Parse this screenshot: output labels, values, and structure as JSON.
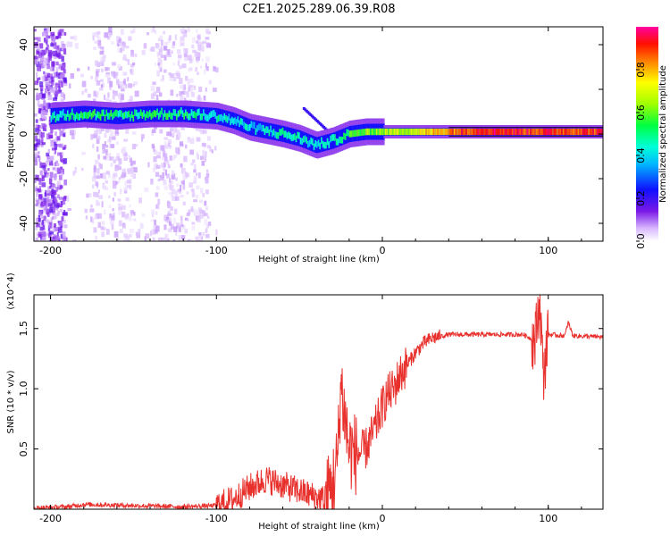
{
  "title": "C2E1.2025.289.06.39.R08",
  "chart_data": [
    {
      "type": "heatmap",
      "xlabel": "Height of straight line (km)",
      "ylabel": "Frequency (Hz)",
      "xlim": [
        -210,
        133
      ],
      "ylim": [
        -48,
        48
      ],
      "xticks": [
        -200,
        -100,
        0,
        100
      ],
      "yticks": [
        -40,
        -20,
        0,
        20,
        40
      ],
      "colorbar": {
        "label": "Normalized spectral amplitude",
        "range": [
          0,
          1
        ],
        "ticks": [
          "0.0",
          "0.2",
          "0.4",
          "0.6",
          "0.8"
        ],
        "colormap": "rainbow (white-violet at 0 to red at 1)"
      },
      "ridge": [
        {
          "x": -200,
          "f": 8,
          "a": 0.45
        },
        {
          "x": -180,
          "f": 9,
          "a": 0.5
        },
        {
          "x": -160,
          "f": 8,
          "a": 0.5
        },
        {
          "x": -140,
          "f": 9,
          "a": 0.5
        },
        {
          "x": -120,
          "f": 9,
          "a": 0.5
        },
        {
          "x": -100,
          "f": 8,
          "a": 0.45
        },
        {
          "x": -90,
          "f": 6,
          "a": 0.4
        },
        {
          "x": -80,
          "f": 3,
          "a": 0.4
        },
        {
          "x": -60,
          "f": 0,
          "a": 0.45
        },
        {
          "x": -50,
          "f": -2,
          "a": 0.45
        },
        {
          "x": -40,
          "f": -5,
          "a": 0.4
        },
        {
          "x": -30,
          "f": -3,
          "a": 0.45
        },
        {
          "x": -20,
          "f": 0,
          "a": 0.55
        },
        {
          "x": -10,
          "f": 1,
          "a": 0.6
        },
        {
          "x": 0,
          "f": 1,
          "a": 0.65
        },
        {
          "x": 20,
          "f": 1,
          "a": 0.7
        },
        {
          "x": 40,
          "f": 1,
          "a": 0.85
        },
        {
          "x": 60,
          "f": 1,
          "a": 0.95
        },
        {
          "x": 90,
          "f": 1,
          "a": 0.9
        },
        {
          "x": 110,
          "f": 1,
          "a": 0.9
        },
        {
          "x": 133,
          "f": 1,
          "a": 0.9
        }
      ]
    },
    {
      "type": "line",
      "xlabel": "Height of straight line (km)",
      "ylabel": "SNR (10 * v/v)",
      "y_scale_label": "(x10^4)",
      "xlim": [
        -210,
        133
      ],
      "ylim": [
        0,
        1.78
      ],
      "xticks": [
        -200,
        -100,
        0,
        100
      ],
      "yticks": [
        0.5,
        1.0,
        1.5
      ],
      "ytick_labels": [
        "0.5",
        "1.0",
        "1.5"
      ],
      "series": [
        {
          "name": "SNR",
          "color": "#e8302c",
          "points": [
            [
              -210,
              0.01
            ],
            [
              -190,
              0.02
            ],
            [
              -180,
              0.04
            ],
            [
              -150,
              0.03
            ],
            [
              -120,
              0.02
            ],
            [
              -100,
              0.03
            ],
            [
              -90,
              0.08
            ],
            [
              -80,
              0.18
            ],
            [
              -70,
              0.25
            ],
            [
              -60,
              0.2
            ],
            [
              -50,
              0.15
            ],
            [
              -40,
              0.1
            ],
            [
              -34,
              0.08
            ],
            [
              -30,
              0.2
            ],
            [
              -27,
              0.4
            ],
            [
              -25,
              1.05
            ],
            [
              -22,
              0.7
            ],
            [
              -20,
              0.5
            ],
            [
              -15,
              0.45
            ],
            [
              -10,
              0.5
            ],
            [
              -5,
              0.65
            ],
            [
              0,
              0.85
            ],
            [
              3,
              0.95
            ],
            [
              7,
              1.0
            ],
            [
              10,
              1.1
            ],
            [
              15,
              1.2
            ],
            [
              20,
              1.3
            ],
            [
              25,
              1.38
            ],
            [
              30,
              1.42
            ],
            [
              40,
              1.45
            ],
            [
              60,
              1.45
            ],
            [
              85,
              1.45
            ],
            [
              92,
              1.4
            ],
            [
              95,
              1.75
            ],
            [
              97,
              1.1
            ],
            [
              100,
              1.45
            ],
            [
              110,
              1.44
            ],
            [
              112,
              1.55
            ],
            [
              115,
              1.44
            ],
            [
              133,
              1.43
            ]
          ]
        }
      ]
    }
  ]
}
